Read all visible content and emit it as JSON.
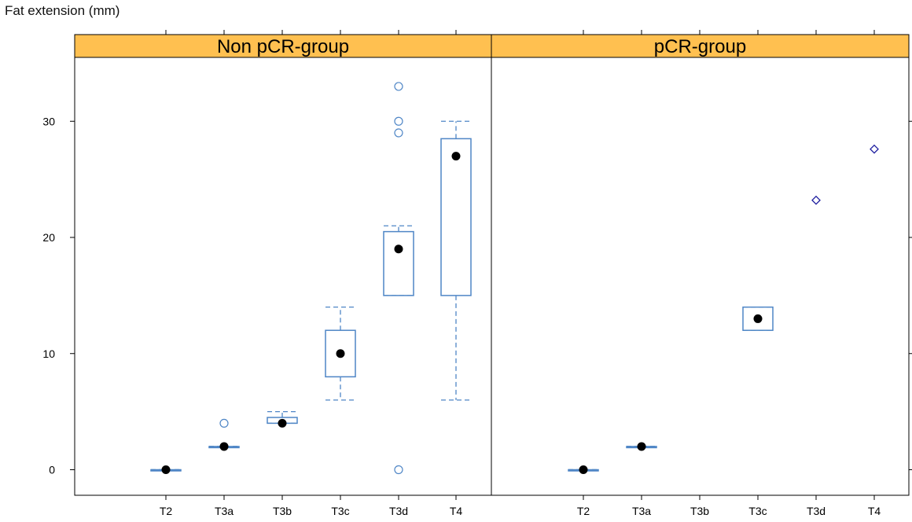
{
  "chart_data": {
    "type": "boxplot",
    "ylabel": "Fat extension (mm)",
    "ylim": [
      -2.2,
      35.5
    ],
    "yticks": [
      0,
      10,
      20,
      30
    ],
    "categories": [
      "T2",
      "T3a",
      "T3b",
      "T3c",
      "T3d",
      "T4"
    ],
    "strip_color": "#ffc050",
    "box_color": "#4f86c6",
    "single_point_color": "#1f1fa0",
    "panels": [
      {
        "name": "Non pCR-group",
        "groups": [
          {
            "category": "T2",
            "whisker_low": 0,
            "q1": 0,
            "median": 0,
            "q3": 0,
            "whisker_high": 0,
            "outliers": []
          },
          {
            "category": "T3a",
            "whisker_low": 2,
            "q1": 2,
            "median": 2,
            "q3": 2,
            "whisker_high": 2,
            "outliers": [
              4
            ]
          },
          {
            "category": "T3b",
            "whisker_low": 4,
            "q1": 4,
            "median": 4,
            "q3": 4.5,
            "whisker_high": 5,
            "outliers": []
          },
          {
            "category": "T3c",
            "whisker_low": 6,
            "q1": 8,
            "median": 10,
            "q3": 12,
            "whisker_high": 14,
            "outliers": []
          },
          {
            "category": "T3d",
            "whisker_low": 15,
            "q1": 15,
            "median": 19,
            "q3": 20.5,
            "whisker_high": 21,
            "outliers": [
              0,
              29,
              30,
              33
            ]
          },
          {
            "category": "T4",
            "whisker_low": 6,
            "q1": 15,
            "median": 27,
            "q3": 28.5,
            "whisker_high": 30,
            "outliers": []
          }
        ]
      },
      {
        "name": "pCR-group",
        "groups": [
          {
            "category": "T2",
            "whisker_low": 0,
            "q1": 0,
            "median": 0,
            "q3": 0,
            "whisker_high": 0,
            "outliers": []
          },
          {
            "category": "T3a",
            "whisker_low": 2,
            "q1": 2,
            "median": 2,
            "q3": 2,
            "whisker_high": 2,
            "outliers": []
          },
          {
            "category": "T3c",
            "whisker_low": 12,
            "q1": 12,
            "median": 13,
            "q3": 14,
            "whisker_high": 14,
            "outliers": []
          },
          {
            "category": "T3d",
            "single_value": 23.2
          },
          {
            "category": "T4",
            "single_value": 27.6
          }
        ]
      }
    ]
  }
}
